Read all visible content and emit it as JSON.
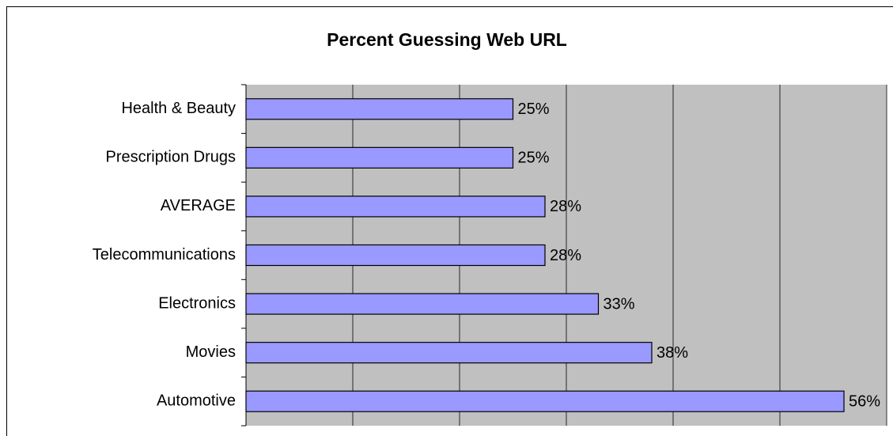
{
  "chart_data": {
    "type": "barh",
    "title": "Percent Guessing Web URL",
    "categories": [
      "Health & Beauty",
      "Prescription Drugs",
      "AVERAGE",
      "Telecommunications",
      "Electronics",
      "Movies",
      "Automotive"
    ],
    "values": [
      25,
      25,
      28,
      28,
      33,
      38,
      56
    ],
    "value_labels": [
      "25%",
      "25%",
      "28%",
      "28%",
      "33%",
      "38%",
      "56%"
    ],
    "color": "#9999ff",
    "xlim": [
      0,
      60
    ],
    "xticks": [
      0,
      10,
      20,
      30,
      40,
      50,
      60
    ],
    "grid": true
  }
}
